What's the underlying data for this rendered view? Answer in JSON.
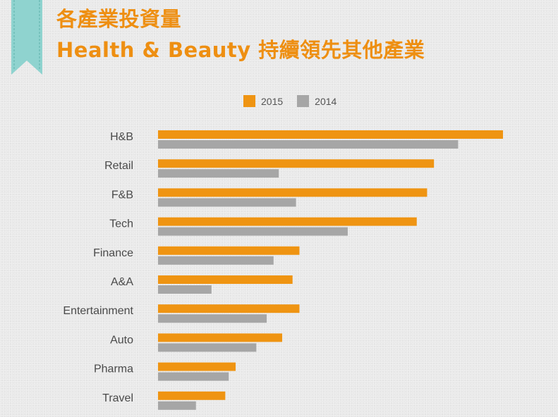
{
  "header": {
    "title_line1": "各產業投資量",
    "title_line2": "Health & Beauty 持續領先其他產業"
  },
  "colors": {
    "accent": "#ee8f12",
    "bar_2015": "#ef9412",
    "bar_2014": "#a6a6a6",
    "ribbon": "#8fd3cf"
  },
  "chart_data": {
    "type": "bar",
    "orientation": "horizontal",
    "categories": [
      "H&B",
      "Retail",
      "F&B",
      "Tech",
      "Finance",
      "A&A",
      "Entertainment",
      "Auto",
      "Pharma",
      "Travel"
    ],
    "series": [
      {
        "name": "2015",
        "color": "#ef9412",
        "values": [
          100,
          80,
          78,
          75,
          41,
          39,
          41,
          36,
          22.5,
          19.5
        ]
      },
      {
        "name": "2014",
        "color": "#a6a6a6",
        "values": [
          87,
          35,
          40,
          55,
          33.5,
          15.5,
          31.5,
          28.5,
          20.5,
          11
        ]
      }
    ],
    "xlim": [
      0,
      100
    ],
    "legend_position": "top-center",
    "grid": false,
    "title": "",
    "xlabel": "",
    "ylabel": ""
  }
}
